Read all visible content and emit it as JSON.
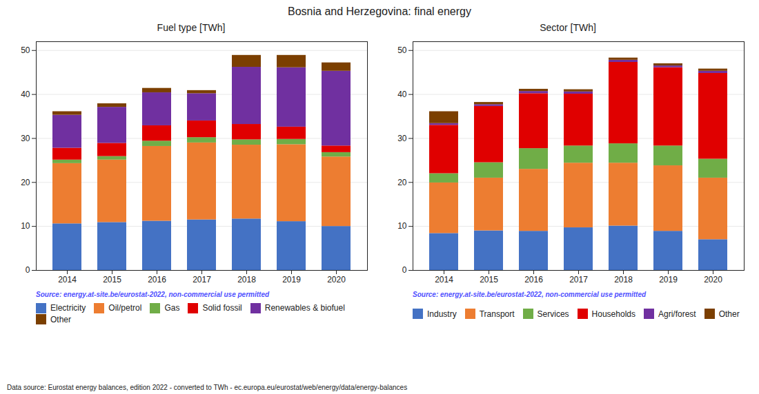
{
  "title": "Bosnia and Herzegovina: final energy",
  "annotations": [
    "Data source: Eurostat energy balances, edition 2022 - converted to TWh - ec.europa.eu/eurostat/web/energy/data/energy-balances"
  ],
  "chart_data": [
    {
      "type": "bar",
      "title": "Fuel type [TWh]",
      "stacked": true,
      "grid": true,
      "legend": "lower left",
      "categories": [
        "2014",
        "2015",
        "2016",
        "2017",
        "2018",
        "2019",
        "2020"
      ],
      "series": [
        {
          "name": "Electricity",
          "color": "#4472c4",
          "values": [
            10.6,
            10.9,
            11.2,
            11.5,
            11.7,
            11.1,
            10.0
          ]
        },
        {
          "name": "Oil/petrol",
          "color": "#ed7d31",
          "values": [
            13.7,
            14.2,
            17.0,
            17.5,
            16.8,
            17.5,
            15.8
          ]
        },
        {
          "name": "Gas",
          "color": "#70ad47",
          "values": [
            0.8,
            0.8,
            1.2,
            1.2,
            1.2,
            1.2,
            1.0
          ]
        },
        {
          "name": "Solid fossil",
          "color": "#e00000",
          "values": [
            2.7,
            3.0,
            3.5,
            3.8,
            3.5,
            2.8,
            1.5
          ]
        },
        {
          "name": "Renewables & biofuel",
          "color": "#7030a0",
          "values": [
            7.5,
            8.2,
            7.5,
            6.2,
            13.0,
            13.5,
            17.0
          ]
        },
        {
          "name": "Other",
          "color": "#7b3f00",
          "values": [
            0.8,
            0.8,
            1.0,
            0.7,
            2.7,
            2.8,
            1.9
          ]
        }
      ],
      "ylim": [
        0,
        52
      ],
      "yticks": [
        0,
        10,
        20,
        30,
        40,
        50
      ],
      "annotations": [
        {
          "text": "Source: energy.at-site.be/eurostat-2022, non-commercial use permitted",
          "color": "#5050ff"
        }
      ]
    },
    {
      "type": "bar",
      "title": "Sector [TWh]",
      "stacked": true,
      "grid": true,
      "legend": "lower left",
      "categories": [
        "2014",
        "2015",
        "2016",
        "2017",
        "2018",
        "2019",
        "2020"
      ],
      "series": [
        {
          "name": "Industry",
          "color": "#4472c4",
          "values": [
            8.4,
            9.0,
            8.9,
            9.7,
            10.1,
            8.9,
            7.0
          ]
        },
        {
          "name": "Transport",
          "color": "#ed7d31",
          "values": [
            11.5,
            12.0,
            14.1,
            14.7,
            14.3,
            14.9,
            14.0
          ]
        },
        {
          "name": "Services",
          "color": "#70ad47",
          "values": [
            2.1,
            3.5,
            4.7,
            3.9,
            4.4,
            4.5,
            4.3
          ]
        },
        {
          "name": "Households",
          "color": "#e00000",
          "values": [
            11.0,
            12.8,
            12.5,
            11.8,
            18.5,
            17.8,
            19.5
          ]
        },
        {
          "name": "Agri/forest",
          "color": "#7030a0",
          "values": [
            0.4,
            0.4,
            0.5,
            0.5,
            0.5,
            0.4,
            0.5
          ]
        },
        {
          "name": "Other",
          "color": "#7b3f00",
          "values": [
            2.7,
            0.5,
            0.5,
            0.5,
            0.5,
            0.5,
            0.5
          ]
        }
      ],
      "ylim": [
        0,
        52
      ],
      "yticks": [
        0,
        10,
        20,
        30,
        40,
        50
      ],
      "annotations": [
        {
          "text": "Source: energy.at-site.be/eurostat-2022, non-commercial use permitted",
          "color": "#5050ff"
        }
      ]
    }
  ]
}
